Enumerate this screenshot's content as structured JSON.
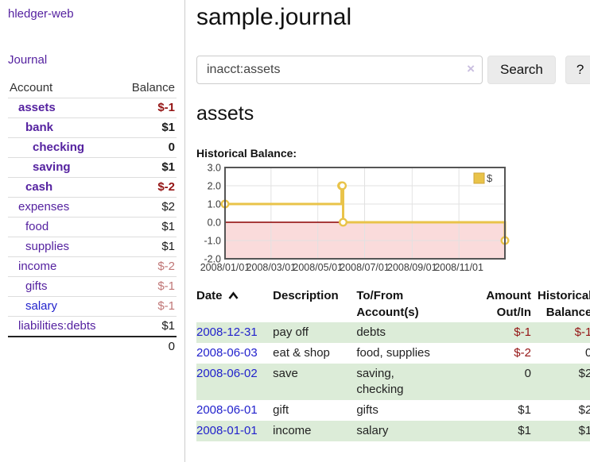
{
  "app": {
    "title": "hledger-web"
  },
  "sidebar": {
    "journal_label": "Journal",
    "accounts_table": {
      "headers": {
        "account": "Account",
        "balance": "Balance"
      },
      "rows": [
        {
          "name": "assets",
          "balance": "$-1",
          "depth": 1,
          "bold": true,
          "balance_tone": "neg-strong",
          "link": "purple"
        },
        {
          "name": "bank",
          "balance": "$1",
          "depth": 2,
          "bold": true,
          "balance_tone": "",
          "link": "purple"
        },
        {
          "name": "checking",
          "balance": "0",
          "depth": 3,
          "bold": true,
          "balance_tone": "",
          "link": "purple"
        },
        {
          "name": "saving",
          "balance": "$1",
          "depth": 3,
          "bold": true,
          "balance_tone": "",
          "link": "purple"
        },
        {
          "name": "cash",
          "balance": "$-2",
          "depth": 2,
          "bold": true,
          "balance_tone": "neg-strong",
          "link": "purple"
        },
        {
          "name": "expenses",
          "balance": "$2",
          "depth": 1,
          "bold": false,
          "balance_tone": "",
          "link": "purple"
        },
        {
          "name": "food",
          "balance": "$1",
          "depth": 2,
          "bold": false,
          "balance_tone": "",
          "link": "purple"
        },
        {
          "name": "supplies",
          "balance": "$1",
          "depth": 2,
          "bold": false,
          "balance_tone": "",
          "link": "purple"
        },
        {
          "name": "income",
          "balance": "$-2",
          "depth": 1,
          "bold": false,
          "balance_tone": "neg-soft",
          "link": "purple"
        },
        {
          "name": "gifts",
          "balance": "$-1",
          "depth": 2,
          "bold": false,
          "balance_tone": "neg-soft",
          "link": "purple"
        },
        {
          "name": "salary",
          "balance": "$-1",
          "depth": 2,
          "bold": false,
          "balance_tone": "neg-soft",
          "link": "blue"
        },
        {
          "name": "liabilities:debts",
          "balance": "$1",
          "depth": 1,
          "bold": false,
          "balance_tone": "",
          "link": "purple"
        }
      ],
      "total": "0"
    }
  },
  "main": {
    "title": "sample.journal",
    "search": {
      "value": "inacct:assets",
      "clear_icon": "×",
      "button_label": "Search",
      "help_label": "?"
    },
    "account_heading": "assets",
    "chart_heading": "Historical Balance:"
  },
  "chart_data": {
    "type": "line",
    "step": true,
    "title": "Historical Balance:",
    "legend_position": "top-right",
    "grid": true,
    "ylim": [
      -2,
      3
    ],
    "xlim_days": [
      0,
      365
    ],
    "y_ticks": [
      3.0,
      2.0,
      1.0,
      0.0,
      -1.0,
      -2.0
    ],
    "x_ticks": [
      {
        "label": "2008/01/01",
        "day": 0
      },
      {
        "label": "2008/03/01",
        "day": 60
      },
      {
        "label": "2008/05/01",
        "day": 121
      },
      {
        "label": "2008/07/01",
        "day": 182
      },
      {
        "label": "2008/09/01",
        "day": 244
      },
      {
        "label": "2008/11/01",
        "day": 305
      }
    ],
    "series": [
      {
        "name": "$",
        "color": "#e9c349",
        "points": [
          {
            "date": "2008-01-01",
            "day": 0,
            "value": 1
          },
          {
            "date": "2008-06-01",
            "day": 152,
            "value": 2
          },
          {
            "date": "2008-06-02",
            "day": 153,
            "value": 2
          },
          {
            "date": "2008-06-03",
            "day": 154,
            "value": 0
          },
          {
            "date": "2008-12-31",
            "day": 365,
            "value": -1
          }
        ]
      }
    ],
    "negative_region_fill": "#fadbdb",
    "zero_line_color": "#8b0000"
  },
  "register_table": {
    "headers": [
      {
        "lines": "Date",
        "align": "left",
        "sorted": true
      },
      {
        "lines": "Description",
        "align": "left",
        "sorted": false
      },
      {
        "lines": "To/From\nAccount(s)",
        "align": "left",
        "sorted": false
      },
      {
        "lines": "Amount\nOut/In",
        "align": "right",
        "sorted": false
      },
      {
        "lines": "Historical\nBalance",
        "align": "right",
        "sorted": false
      }
    ],
    "rows": [
      {
        "date": "2008-12-31",
        "description": "pay off",
        "accounts": "debts",
        "amount": "$-1",
        "balance": "$-1",
        "amount_tone": "neg-strong",
        "balance_tone": "neg-strong"
      },
      {
        "date": "2008-06-03",
        "description": "eat & shop",
        "accounts": "food, supplies",
        "amount": "$-2",
        "balance": "0",
        "amount_tone": "neg-strong",
        "balance_tone": ""
      },
      {
        "date": "2008-06-02",
        "description": "save",
        "accounts": "saving,\nchecking",
        "amount": "0",
        "balance": "$2",
        "amount_tone": "",
        "balance_tone": ""
      },
      {
        "date": "2008-06-01",
        "description": "gift",
        "accounts": "gifts",
        "amount": "$1",
        "balance": "$2",
        "amount_tone": "",
        "balance_tone": ""
      },
      {
        "date": "2008-01-01",
        "description": "income",
        "accounts": "salary",
        "amount": "$1",
        "balance": "$1",
        "amount_tone": "",
        "balance_tone": ""
      }
    ]
  },
  "colors": {
    "purple_link": "#5522a0",
    "blue_link": "#2222cc",
    "negative_strong": "#941414",
    "negative_soft": "#c07676",
    "row_green": "#dcecd8",
    "series_gold": "#e9c349",
    "negative_region": "#fadbdb",
    "zero_line": "#8b0000"
  }
}
